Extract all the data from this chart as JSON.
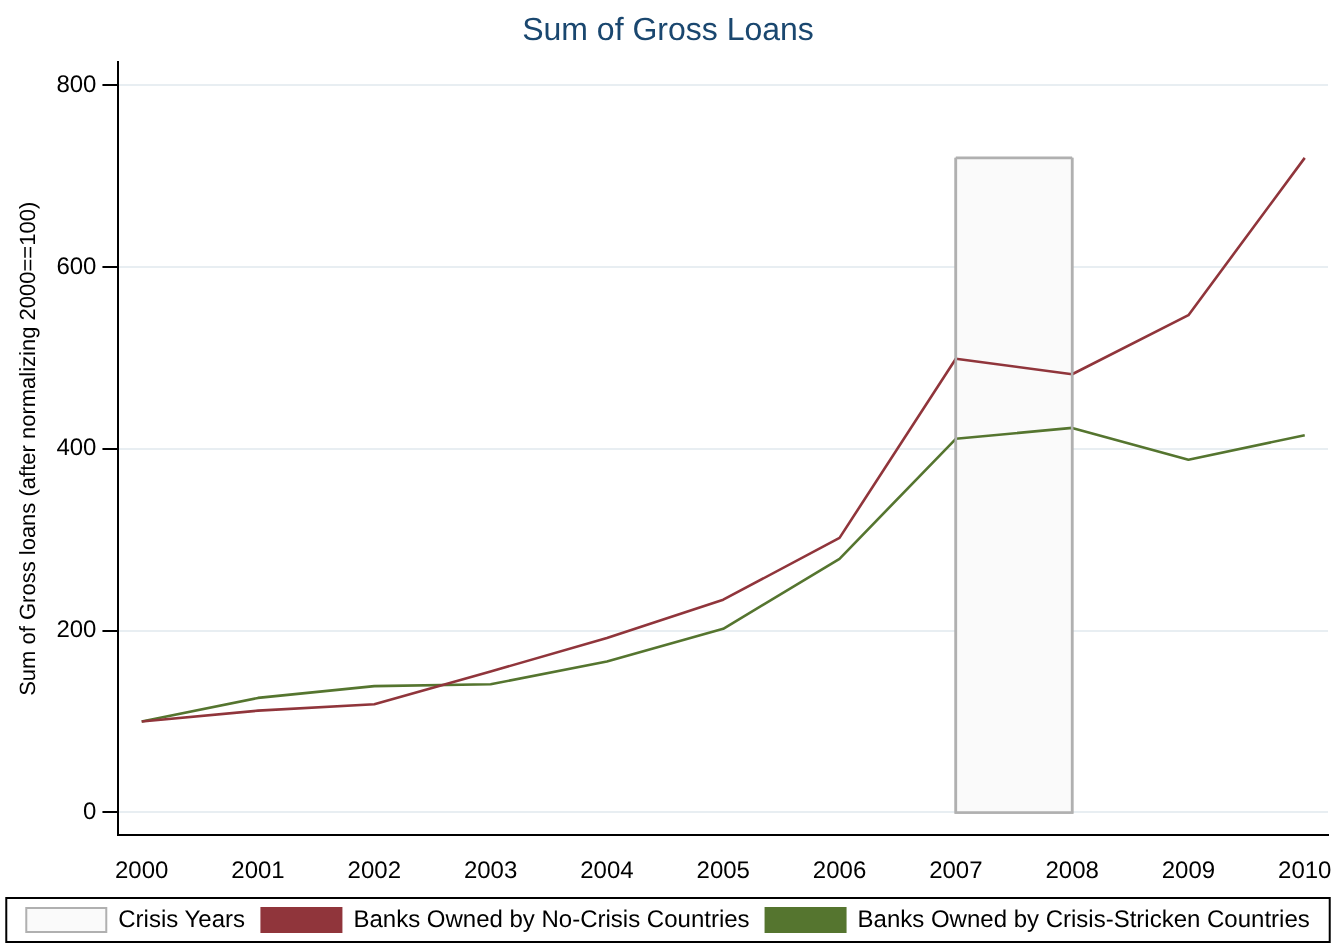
{
  "chart_data": {
    "type": "line",
    "title": "Sum of Gross Loans",
    "ylabel": "Sum of Gross loans (after normalizing 2000==100)",
    "x": [
      2000,
      2001,
      2002,
      2003,
      2004,
      2005,
      2006,
      2007,
      2008,
      2009,
      2010
    ],
    "series": [
      {
        "name": "Crisis Years",
        "type": "area",
        "color": "#fafafa",
        "x": [
          2007,
          2008
        ],
        "values": [
          720,
          720
        ]
      },
      {
        "name": "Banks Owned by No-Crisis Countries",
        "color": "#90353b",
        "values": [
          100,
          112,
          119,
          155,
          192,
          234,
          302,
          499,
          482,
          547,
          720
        ]
      },
      {
        "name": "Banks Owned by Crisis-Stricken Countries",
        "color": "#55752f",
        "values": [
          100,
          126,
          139,
          141,
          166,
          202,
          279,
          411,
          423,
          388,
          415
        ]
      }
    ],
    "xlim": [
      1999.8,
      2010.2
    ],
    "xticks": [
      2000,
      2001,
      2002,
      2003,
      2004,
      2005,
      2006,
      2007,
      2008,
      2009,
      2010
    ],
    "ylim": [
      -25,
      825
    ],
    "yticks": [
      0,
      200,
      400,
      600,
      800
    ],
    "grid": "y",
    "legend": "bottom",
    "marker": "none",
    "line_style": "solid"
  }
}
